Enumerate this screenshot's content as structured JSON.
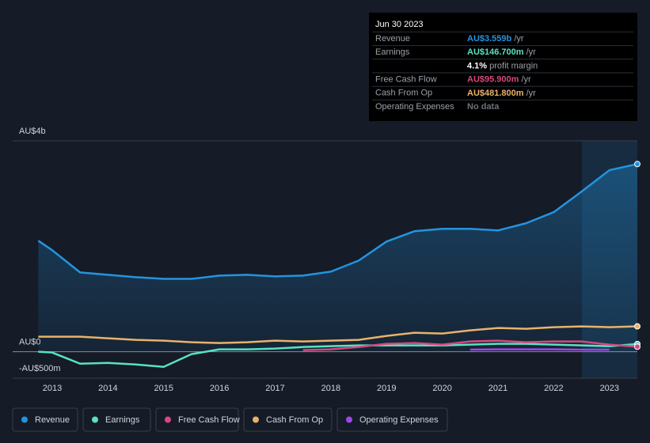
{
  "chart_data": {
    "type": "line",
    "x": [
      2012.75,
      2013,
      2013.25,
      2013.5,
      2014,
      2014.5,
      2015,
      2015.5,
      2016,
      2016.5,
      2017,
      2017.5,
      2018,
      2018.5,
      2019,
      2019.5,
      2020,
      2020.5,
      2021,
      2021.5,
      2022,
      2022.5,
      2023,
      2023.5
    ],
    "xlim": [
      2012.29,
      2023.5
    ],
    "xticks": [
      2013,
      2014,
      2015,
      2016,
      2017,
      2018,
      2019,
      2020,
      2021,
      2022,
      2023
    ],
    "ylim": [
      -500,
      4000
    ],
    "yticks": [
      {
        "value": 4000,
        "label": "AU$4b"
      },
      {
        "value": 0,
        "label": "AU$0"
      },
      {
        "value": -500,
        "label": "-AU$500m"
      }
    ],
    "series": [
      {
        "name": "Revenue",
        "color": "#2394df",
        "values": [
          2105,
          1925,
          1714,
          1504,
          1459,
          1414,
          1383,
          1383,
          1444,
          1459,
          1429,
          1444,
          1519,
          1729,
          2090,
          2286,
          2331,
          2331,
          2301,
          2436,
          2647,
          3038,
          3444,
          3559
        ]
      },
      {
        "name": "Earnings",
        "color": "#58e2c2",
        "values": [
          0,
          -15,
          -120,
          -226,
          -211,
          -241,
          -286,
          -45,
          45,
          45,
          60,
          90,
          105,
          120,
          120,
          120,
          120,
          135,
          150,
          150,
          135,
          120,
          105,
          146.7
        ]
      },
      {
        "name": "Free Cash Flow",
        "color": "#d6487e",
        "values": [
          null,
          null,
          null,
          null,
          null,
          null,
          null,
          null,
          null,
          null,
          null,
          30,
          45,
          90,
          150,
          165,
          135,
          195,
          211,
          180,
          195,
          195,
          135,
          95.9
        ]
      },
      {
        "name": "Cash From Op",
        "color": "#e9b26a",
        "values": [
          286,
          286,
          286,
          286,
          256,
          226,
          211,
          180,
          165,
          180,
          211,
          195,
          211,
          226,
          301,
          361,
          346,
          406,
          451,
          436,
          466,
          481,
          466,
          481.8
        ]
      },
      {
        "name": "Operating Expenses",
        "color": "#a246e8",
        "values": [
          null,
          null,
          null,
          null,
          null,
          null,
          null,
          null,
          null,
          null,
          null,
          null,
          null,
          null,
          null,
          null,
          null,
          40,
          45,
          45,
          45,
          40,
          40,
          null
        ]
      }
    ],
    "tooltip": {
      "date": "Jun 30 2023",
      "rows": [
        {
          "label": "Revenue",
          "value": "AU$3.559b",
          "unit": "/yr"
        },
        {
          "label": "Earnings",
          "value": "AU$146.700m",
          "unit": "/yr"
        },
        {
          "label": null,
          "value": "4.1%",
          "unit": "profit margin"
        },
        {
          "label": "Free Cash Flow",
          "value": "AU$95.900m",
          "unit": "/yr"
        },
        {
          "label": "Cash From Op",
          "value": "AU$481.800m",
          "unit": "/yr"
        },
        {
          "label": "Operating Expenses",
          "value": "No data",
          "unit": null
        }
      ]
    }
  }
}
